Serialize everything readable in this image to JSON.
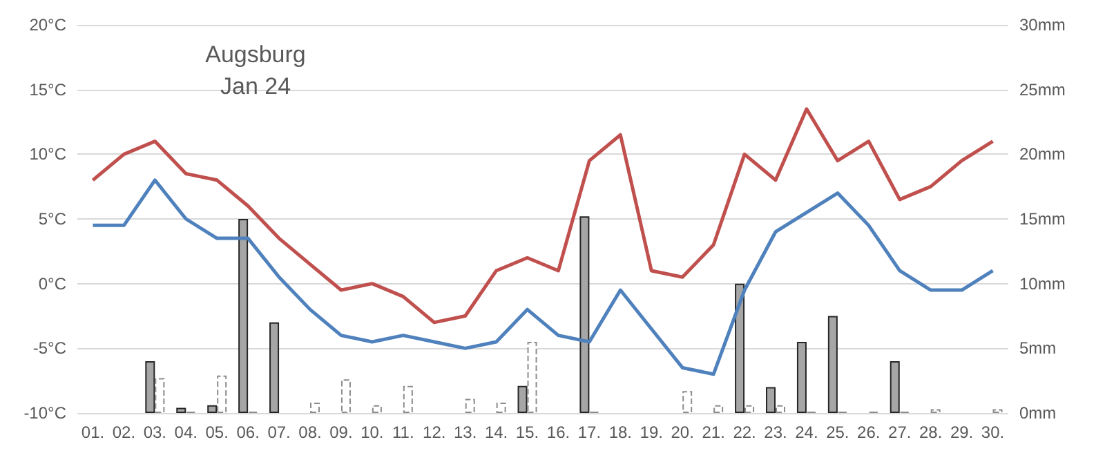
{
  "chart_data": {
    "type": "line",
    "title": "Augsburg",
    "subtitle": "Jan 24",
    "categories": [
      "01.",
      "02.",
      "03.",
      "04.",
      "05.",
      "06.",
      "07.",
      "08.",
      "09.",
      "10.",
      "11.",
      "12.",
      "13.",
      "14.",
      "15.",
      "16.",
      "17.",
      "18.",
      "19.",
      "20.",
      "21.",
      "22.",
      "23.",
      "24.",
      "25.",
      "26.",
      "27.",
      "28.",
      "29.",
      "30."
    ],
    "series": [
      {
        "type": "bar",
        "axis": "y2",
        "color": "#a6a6a6",
        "line_style": "solid",
        "values": [
          null,
          null,
          4,
          0.4,
          0.6,
          15,
          7,
          null,
          null,
          null,
          null,
          null,
          null,
          null,
          2.1,
          null,
          15.2,
          null,
          null,
          null,
          null,
          10,
          2,
          5.5,
          7.5,
          null,
          4,
          null,
          null,
          null
        ]
      },
      {
        "type": "bar",
        "axis": "y2",
        "color": "#8c8c8c",
        "line_style": "dashed",
        "values": [
          null,
          null,
          2.7,
          0.1,
          2.9,
          0.1,
          null,
          0.8,
          2.6,
          0.6,
          2.1,
          null,
          1.1,
          0.8,
          5.5,
          null,
          0.1,
          null,
          null,
          1.7,
          0.6,
          0.6,
          0.6,
          0.1,
          0.1,
          0.1,
          0.1,
          0.3,
          null,
          0.3
        ]
      },
      {
        "color": "#c0504d",
        "values": [
          8,
          10,
          11,
          8.5,
          8,
          6,
          3.5,
          1.5,
          -0.5,
          0,
          -1,
          -3,
          -2.5,
          1,
          2,
          1,
          9.5,
          11.5,
          1,
          0.5,
          3,
          10,
          8,
          13.5,
          9.5,
          11,
          6.5,
          7.5,
          9.5,
          11
        ]
      },
      {
        "color": "#4f81bd",
        "values": [
          4.5,
          4.5,
          8,
          5,
          3.5,
          3.5,
          0.5,
          -2,
          -4,
          -4.5,
          -4,
          -4.5,
          -5,
          -4.5,
          -2,
          -4,
          -4.5,
          -0.5,
          -3.5,
          -6.5,
          -7,
          -0.5,
          4,
          5.5,
          7,
          4.5,
          1,
          -0.5,
          -0.5,
          1
        ]
      }
    ],
    "ylim": [
      -10,
      20
    ],
    "yticks": [
      {
        "value": -10,
        "label": "-10°C"
      },
      {
        "value": -5,
        "label": "-5°C"
      },
      {
        "value": 0,
        "label": "0°C"
      },
      {
        "value": 5,
        "label": "5°C"
      },
      {
        "value": 10,
        "label": "10°C"
      },
      {
        "value": 15,
        "label": "15°C"
      },
      {
        "value": 20,
        "label": "20°C"
      }
    ],
    "y2lim": [
      0,
      30
    ],
    "y2ticks": [
      {
        "value": 0,
        "label": "0mm"
      },
      {
        "value": 5,
        "label": "5mm"
      },
      {
        "value": 10,
        "label": "10mm"
      },
      {
        "value": 15,
        "label": "15mm"
      },
      {
        "value": 20,
        "label": "20mm"
      },
      {
        "value": 25,
        "label": "25mm"
      },
      {
        "value": 30,
        "label": "30mm"
      }
    ],
    "grid": "y",
    "marker": "none"
  }
}
